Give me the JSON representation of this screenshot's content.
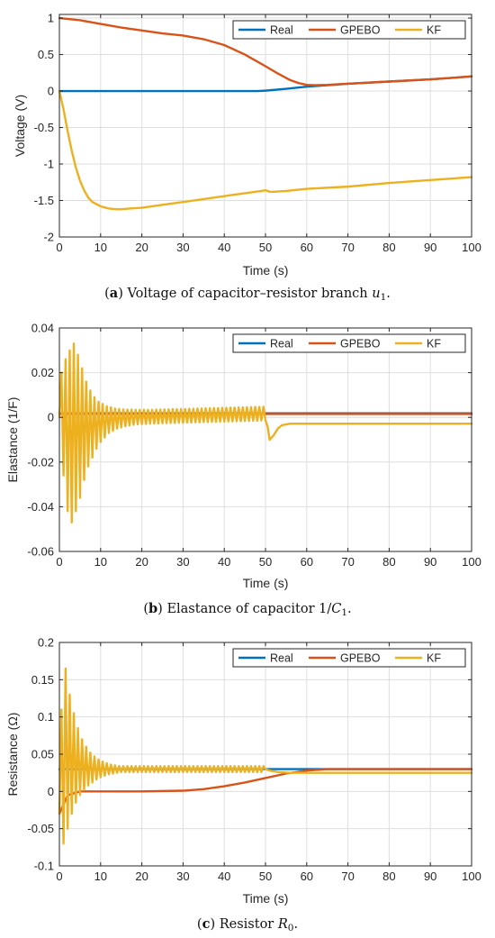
{
  "colors": {
    "real": "#0072BD",
    "gpebo": "#D95319",
    "kf": "#EDB120"
  },
  "chart_data": [
    {
      "type": "line",
      "caption": {
        "letter": "a",
        "text": "Voltage of capacitor–resistor branch ",
        "math": "u",
        "sub": "1",
        "end": "."
      },
      "xlabel": "Time (s)",
      "ylabel": "Voltage (V)",
      "xlim": [
        0,
        100
      ],
      "ylim": [
        -2,
        1.05
      ],
      "xticks": [
        0,
        10,
        20,
        30,
        40,
        50,
        60,
        70,
        80,
        90,
        100
      ],
      "xtick_labels": [
        "0",
        "10",
        "20",
        "30",
        "40",
        "50",
        "60",
        "70",
        "80",
        "90",
        "100"
      ],
      "yticks": [
        -2,
        -1.5,
        -1,
        -0.5,
        0,
        0.5,
        1
      ],
      "ytick_labels": [
        "-2",
        "-1.5",
        "-1",
        "-0.5",
        "0",
        "0.5",
        "1"
      ],
      "grid": true,
      "legend": {
        "position": "top-right",
        "labels": [
          "Real",
          "GPEBO",
          "KF"
        ]
      },
      "series": [
        {
          "name": "Real",
          "color_key": "real",
          "x": [
            0,
            10,
            20,
            30,
            40,
            48,
            50,
            55,
            60,
            65,
            70,
            80,
            90,
            100
          ],
          "y": [
            0,
            0,
            0,
            0,
            0,
            0,
            0.005,
            0.03,
            0.06,
            0.08,
            0.1,
            0.13,
            0.16,
            0.2
          ]
        },
        {
          "name": "GPEBO",
          "color_key": "gpebo",
          "x": [
            0,
            5,
            10,
            15,
            20,
            25,
            30,
            35,
            40,
            45,
            50,
            53,
            56,
            58,
            60,
            62,
            65,
            70,
            80,
            90,
            100
          ],
          "y": [
            1,
            0.97,
            0.92,
            0.87,
            0.83,
            0.79,
            0.76,
            0.71,
            0.63,
            0.5,
            0.34,
            0.24,
            0.15,
            0.11,
            0.085,
            0.08,
            0.085,
            0.1,
            0.13,
            0.16,
            0.2
          ]
        },
        {
          "name": "KF",
          "color_key": "kf",
          "x": [
            0,
            1,
            2,
            3,
            4,
            5,
            6,
            7,
            8,
            10,
            12,
            14,
            15,
            17,
            20,
            25,
            30,
            35,
            40,
            45,
            49,
            50,
            51,
            52,
            55,
            60,
            70,
            80,
            90,
            100
          ],
          "y": [
            0,
            -0.25,
            -0.55,
            -0.82,
            -1.05,
            -1.23,
            -1.36,
            -1.46,
            -1.52,
            -1.58,
            -1.61,
            -1.62,
            -1.62,
            -1.61,
            -1.6,
            -1.56,
            -1.52,
            -1.48,
            -1.44,
            -1.4,
            -1.37,
            -1.36,
            -1.38,
            -1.38,
            -1.37,
            -1.34,
            -1.31,
            -1.26,
            -1.22,
            -1.18
          ]
        }
      ]
    },
    {
      "type": "line",
      "caption": {
        "letter": "b",
        "text": "Elastance of capacitor 1/",
        "math": "C",
        "sub": "1",
        "end": "."
      },
      "xlabel": "Time (s)",
      "ylabel": "Elastance (1/F)",
      "xlim": [
        0,
        100
      ],
      "ylim": [
        -0.06,
        0.04
      ],
      "xticks": [
        0,
        10,
        20,
        30,
        40,
        50,
        60,
        70,
        80,
        90,
        100
      ],
      "xtick_labels": [
        "0",
        "10",
        "20",
        "30",
        "40",
        "50",
        "60",
        "70",
        "80",
        "90",
        "100"
      ],
      "yticks": [
        -0.06,
        -0.04,
        -0.02,
        0,
        0.02,
        0.04
      ],
      "ytick_labels": [
        "-0.06",
        "-0.04",
        "-0.02",
        "0",
        "0.02",
        "0.04"
      ],
      "grid": true,
      "legend": {
        "position": "top-right",
        "labels": [
          "Real",
          "GPEBO",
          "KF"
        ]
      },
      "series": [
        {
          "name": "Real",
          "color_key": "real",
          "x": [
            0,
            100
          ],
          "y": [
            0.0018,
            0.0018
          ]
        },
        {
          "name": "GPEBO",
          "color_key": "gpebo",
          "x": [
            0,
            100
          ],
          "y": [
            0.0015,
            0.0015
          ]
        },
        {
          "name": "KF",
          "color_key": "kf",
          "x": [
            0,
            0.5,
            1.0,
            1.5,
            2.0,
            2.5,
            3.0,
            3.5,
            4.0,
            4.5,
            5.0,
            5.5,
            6.0,
            6.5,
            7.0,
            7.5,
            8.0,
            8.5,
            9.0,
            9.5,
            10.0,
            10.5,
            11.0,
            11.5,
            12.0,
            12.5,
            13.0,
            13.5,
            14.0,
            14.5,
            15.0,
            15.5,
            16.0,
            16.5,
            17.0,
            17.5,
            18.0,
            18.5,
            19.0,
            19.5,
            20.0,
            20.5,
            21.0,
            21.5,
            22.0,
            22.5,
            23.0,
            23.5,
            24.0,
            24.5,
            25.0,
            25.5,
            26.0,
            26.5,
            27.0,
            27.5,
            28.0,
            28.5,
            29.0,
            29.5,
            30.0,
            30.5,
            31.0,
            31.5,
            32.0,
            32.5,
            33.0,
            33.5,
            34.0,
            34.5,
            35.0,
            35.5,
            36.0,
            36.5,
            37.0,
            37.5,
            38.0,
            38.5,
            39.0,
            39.5,
            40.0,
            40.5,
            41.0,
            41.5,
            42.0,
            42.5,
            43.0,
            43.5,
            44.0,
            44.5,
            45.0,
            45.5,
            46.0,
            46.5,
            47.0,
            47.5,
            48.0,
            48.5,
            49.0,
            49.5,
            50.0,
            50.5,
            51.0,
            52.0,
            53.0,
            54.0,
            56.0,
            60.0,
            70.0,
            80.0,
            90.0,
            100.0
          ],
          "y": [
            0.0,
            0.02,
            -0.026,
            0.026,
            -0.042,
            0.03,
            -0.047,
            0.033,
            -0.042,
            0.028,
            -0.036,
            0.022,
            -0.028,
            0.016,
            -0.022,
            0.012,
            -0.018,
            0.009,
            -0.014,
            0.007,
            -0.011,
            0.006,
            -0.009,
            0.005,
            -0.007,
            0.0045,
            -0.006,
            0.004,
            -0.005,
            0.0038,
            -0.0045,
            0.0036,
            -0.004,
            0.0035,
            -0.0036,
            0.0035,
            -0.0033,
            0.0034,
            -0.0031,
            0.0034,
            -0.003,
            0.0034,
            -0.0029,
            0.0034,
            -0.0028,
            0.0034,
            -0.0027,
            0.0035,
            -0.0027,
            0.0035,
            -0.0026,
            0.0036,
            -0.0026,
            0.0036,
            -0.0025,
            0.0037,
            -0.0025,
            0.0037,
            -0.0024,
            0.0038,
            -0.0024,
            0.0038,
            -0.0023,
            0.0039,
            -0.0023,
            0.0039,
            -0.0022,
            0.004,
            -0.0022,
            0.004,
            -0.0021,
            0.0041,
            -0.0021,
            0.0041,
            -0.002,
            0.0042,
            -0.002,
            0.0042,
            -0.0019,
            0.0043,
            -0.0019,
            0.0043,
            -0.0018,
            0.0044,
            -0.0018,
            0.0044,
            -0.0017,
            0.0045,
            -0.0017,
            0.0045,
            -0.0016,
            0.0046,
            -0.0016,
            0.0046,
            -0.0015,
            0.0047,
            -0.0015,
            0.0047,
            -0.0014,
            0.0048,
            -0.0014,
            -0.004,
            -0.01,
            -0.008,
            -0.005,
            -0.0035,
            -0.0028,
            -0.0028,
            -0.0028,
            -0.0028,
            -0.0028,
            -0.0028
          ]
        }
      ]
    },
    {
      "type": "line",
      "caption": {
        "letter": "c",
        "text": "Resistor ",
        "math": "R",
        "sub": "0",
        "end": "."
      },
      "xlabel": "Time (s)",
      "ylabel": "Resistance (Ω)",
      "xlim": [
        0,
        100
      ],
      "ylim": [
        -0.1,
        0.2
      ],
      "xticks": [
        0,
        10,
        20,
        30,
        40,
        50,
        60,
        70,
        80,
        90,
        100
      ],
      "xtick_labels": [
        "0",
        "10",
        "20",
        "30",
        "40",
        "50",
        "60",
        "70",
        "80",
        "90",
        "100"
      ],
      "yticks": [
        -0.1,
        -0.05,
        0,
        0.05,
        0.1,
        0.15,
        0.2
      ],
      "ytick_labels": [
        "-0.1",
        "-0.05",
        "0",
        "0.05",
        "0.1",
        "0.15",
        "0.2"
      ],
      "grid": true,
      "legend": {
        "position": "top-right",
        "labels": [
          "Real",
          "GPEBO",
          "KF"
        ]
      },
      "series": [
        {
          "name": "Real",
          "color_key": "real",
          "x": [
            0,
            100
          ],
          "y": [
            0.03,
            0.03
          ]
        },
        {
          "name": "GPEBO",
          "color_key": "gpebo",
          "x": [
            0,
            2,
            5,
            10,
            20,
            30,
            35,
            40,
            45,
            50,
            55,
            60,
            65,
            70,
            100
          ],
          "y": [
            -0.03,
            -0.005,
            0,
            0,
            0,
            0.001,
            0.003,
            0.007,
            0.012,
            0.018,
            0.024,
            0.028,
            0.03,
            0.03,
            0.03
          ]
        },
        {
          "name": "KF",
          "color_key": "kf",
          "x": [
            0,
            0.5,
            1.0,
            1.5,
            2.0,
            2.5,
            3.0,
            3.5,
            4.0,
            4.5,
            5.0,
            5.5,
            6.0,
            6.5,
            7.0,
            7.5,
            8.0,
            8.5,
            9.0,
            9.5,
            10.0,
            10.5,
            11.0,
            11.5,
            12.0,
            12.5,
            13.0,
            13.5,
            14.0,
            14.5,
            15.0,
            15.5,
            16.0,
            16.5,
            17.0,
            17.5,
            18.0,
            18.5,
            19.0,
            19.5,
            20.0,
            20.5,
            21.0,
            21.5,
            22.0,
            22.5,
            23.0,
            23.5,
            24.0,
            24.5,
            25.0,
            25.5,
            26.0,
            26.5,
            27.0,
            27.5,
            28.0,
            28.5,
            29.0,
            29.5,
            30.0,
            30.5,
            31.0,
            31.5,
            32.0,
            32.5,
            33.0,
            33.5,
            34.0,
            34.5,
            35.0,
            35.5,
            36.0,
            36.5,
            37.0,
            37.5,
            38.0,
            38.5,
            39.0,
            39.5,
            40.0,
            40.5,
            41.0,
            41.5,
            42.0,
            42.5,
            43.0,
            43.5,
            44.0,
            44.5,
            45.0,
            45.5,
            46.0,
            46.5,
            47.0,
            47.5,
            48.0,
            48.5,
            49.0,
            49.5,
            50.0,
            51.0,
            53.0,
            56.0,
            60.0,
            70.0,
            80.0,
            90.0,
            100.0
          ],
          "y": [
            -0.03,
            0.11,
            -0.07,
            0.165,
            -0.05,
            0.13,
            -0.03,
            0.105,
            -0.015,
            0.085,
            -0.005,
            0.07,
            0.002,
            0.06,
            0.008,
            0.052,
            0.012,
            0.047,
            0.016,
            0.043,
            0.019,
            0.04,
            0.021,
            0.038,
            0.023,
            0.036,
            0.024,
            0.035,
            0.025,
            0.034,
            0.026,
            0.034,
            0.026,
            0.034,
            0.026,
            0.034,
            0.026,
            0.034,
            0.026,
            0.034,
            0.026,
            0.034,
            0.026,
            0.034,
            0.026,
            0.034,
            0.026,
            0.034,
            0.026,
            0.034,
            0.026,
            0.034,
            0.026,
            0.034,
            0.026,
            0.034,
            0.026,
            0.034,
            0.026,
            0.034,
            0.026,
            0.034,
            0.026,
            0.034,
            0.026,
            0.034,
            0.026,
            0.034,
            0.026,
            0.034,
            0.026,
            0.034,
            0.026,
            0.034,
            0.026,
            0.034,
            0.026,
            0.034,
            0.026,
            0.034,
            0.026,
            0.034,
            0.026,
            0.034,
            0.026,
            0.034,
            0.026,
            0.034,
            0.026,
            0.034,
            0.026,
            0.034,
            0.026,
            0.034,
            0.026,
            0.034,
            0.026,
            0.034,
            0.026,
            0.034,
            0.03,
            0.028,
            0.026,
            0.025,
            0.025,
            0.025,
            0.025,
            0.025,
            0.025
          ]
        }
      ]
    }
  ]
}
